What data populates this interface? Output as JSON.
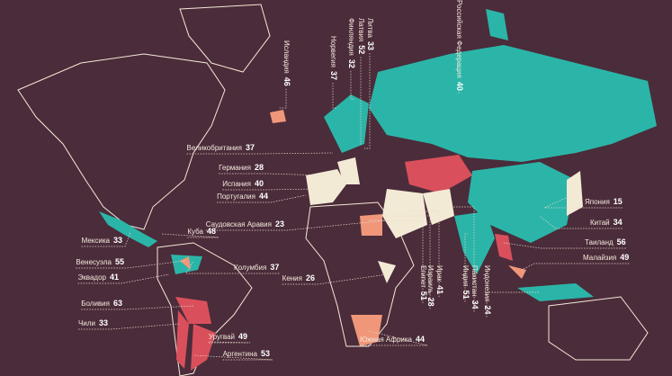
{
  "labels": [
    {
      "name": "Великобритания",
      "value": 37
    },
    {
      "name": "Германия",
      "value": 28
    },
    {
      "name": "Испания",
      "value": 40
    },
    {
      "name": "Португалия",
      "value": 44
    },
    {
      "name": "Саудовская Аравия",
      "value": 23
    },
    {
      "name": "Куба",
      "value": 48
    },
    {
      "name": "Мексика",
      "value": 33
    },
    {
      "name": "Венесуэла",
      "value": 55
    },
    {
      "name": "Эквадор",
      "value": 41
    },
    {
      "name": "Колумбия",
      "value": 37
    },
    {
      "name": "Кения",
      "value": 26
    },
    {
      "name": "Боливия",
      "value": 63
    },
    {
      "name": "Чили",
      "value": 33
    },
    {
      "name": "Уругвай",
      "value": 49
    },
    {
      "name": "Аргентина",
      "value": 53
    },
    {
      "name": "Южная Африка",
      "value": 44
    },
    {
      "name": "Япония",
      "value": 15
    },
    {
      "name": "Китай",
      "value": 34
    },
    {
      "name": "Таиланд",
      "value": 56
    },
    {
      "name": "Малайзия",
      "value": 49
    },
    {
      "name": "Исландия",
      "value": 46
    },
    {
      "name": "Норвегия",
      "value": 37
    },
    {
      "name": "Финляндия",
      "value": 32
    },
    {
      "name": "Латвия",
      "value": 52
    },
    {
      "name": "Литва",
      "value": 33
    },
    {
      "name": "Российская Федерация",
      "value": 40
    },
    {
      "name": "Египет",
      "value": 51
    },
    {
      "name": "Израиль",
      "value": 28
    },
    {
      "name": "Ирак",
      "value": 41
    },
    {
      "name": "Индия",
      "value": 51
    },
    {
      "name": "Пакистан",
      "value": 34
    },
    {
      "name": "Индонезия",
      "value": 24
    }
  ]
}
